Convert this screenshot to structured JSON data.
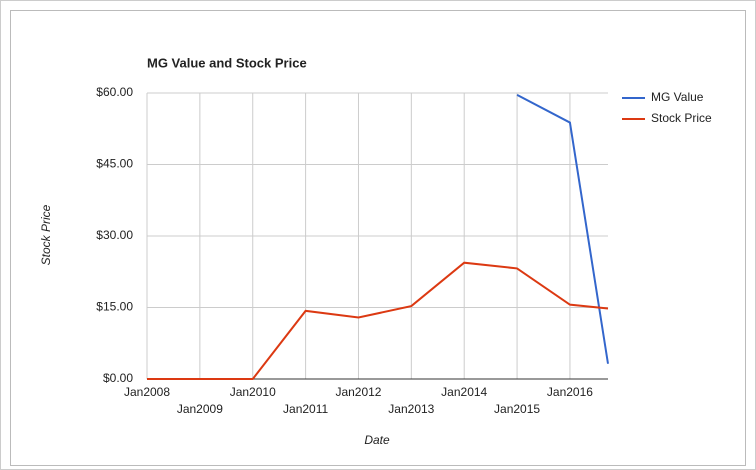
{
  "chart_data": {
    "type": "line",
    "title": "MG Value and Stock Price",
    "x_label": "Date",
    "y_label": "Stock Price",
    "x": [
      2008,
      2009,
      2010,
      2011,
      2012,
      2013,
      2014,
      2015,
      2016,
      2016.72
    ],
    "series": [
      {
        "name": "MG Value",
        "color": "#3366cc",
        "values": [
          null,
          null,
          null,
          null,
          null,
          null,
          null,
          59.6,
          53.8,
          3.2
        ]
      },
      {
        "name": "Stock Price",
        "color": "#dc3912",
        "values": [
          0,
          0,
          0,
          14.3,
          12.9,
          15.3,
          24.4,
          23.2,
          15.6,
          14.8
        ]
      }
    ],
    "xlim": [
      2008,
      2016.72
    ],
    "xticks": [
      {
        "value": 2008,
        "label": "Jan2008"
      },
      {
        "value": 2009,
        "label": "Jan2009"
      },
      {
        "value": 2010,
        "label": "Jan2010"
      },
      {
        "value": 2011,
        "label": "Jan2011"
      },
      {
        "value": 2012,
        "label": "Jan2012"
      },
      {
        "value": 2013,
        "label": "Jan2013"
      },
      {
        "value": 2014,
        "label": "Jan2014"
      },
      {
        "value": 2015,
        "label": "Jan2015"
      },
      {
        "value": 2016,
        "label": "Jan2016"
      }
    ],
    "ylim": [
      0,
      60
    ],
    "yticks": [
      {
        "value": 0,
        "label": "$0.00"
      },
      {
        "value": 15,
        "label": "$15.00"
      },
      {
        "value": 30,
        "label": "$30.00"
      },
      {
        "value": 45,
        "label": "$45.00"
      },
      {
        "value": 60,
        "label": "$60.00"
      }
    ],
    "grid": true,
    "legend_position": "right"
  }
}
